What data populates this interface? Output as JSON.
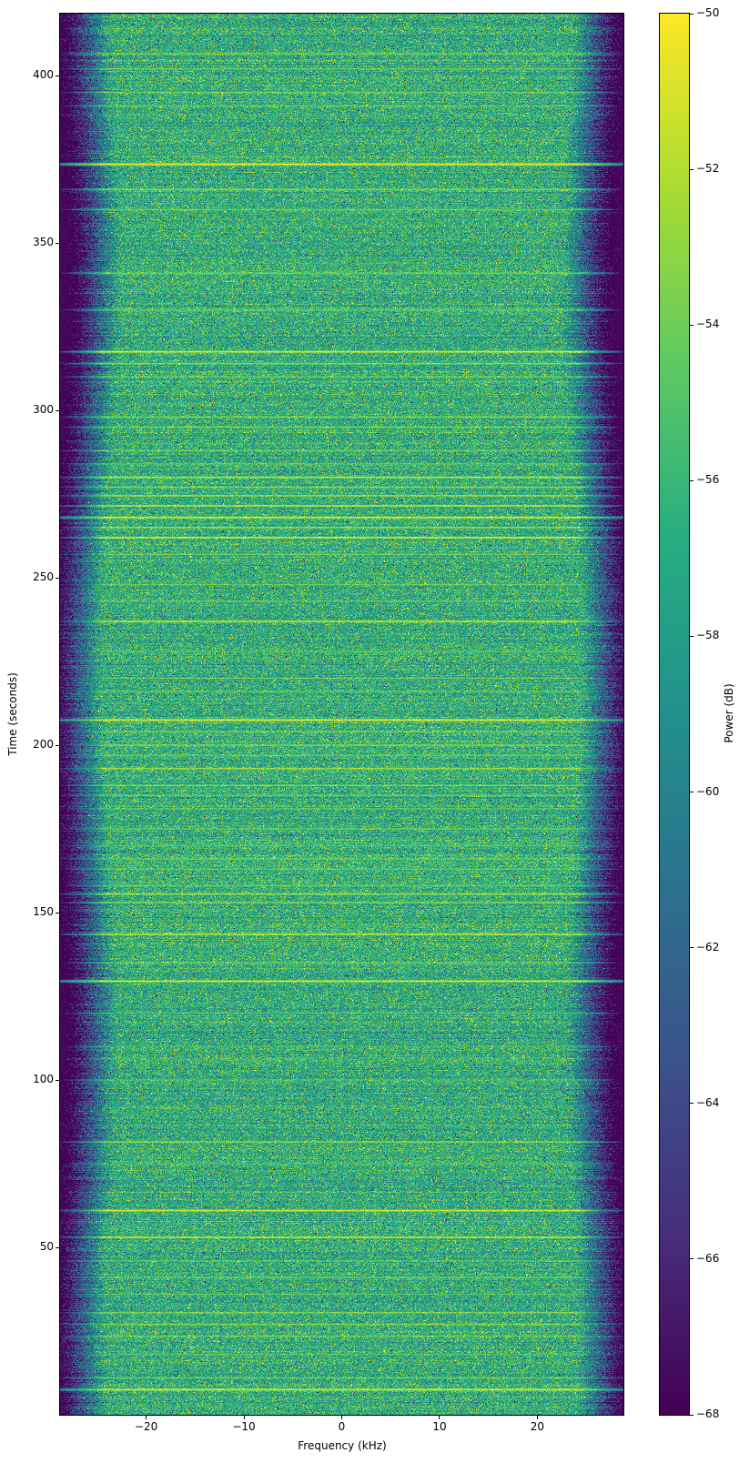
{
  "figure": {
    "title": "",
    "xlabel": "Frequency (kHz)",
    "ylabel": "Time (seconds)",
    "colorbar_label": "Power (dB)",
    "background_color": "#ffffff",
    "x_ticks": [
      {
        "v": -20,
        "label": "−20"
      },
      {
        "v": -10,
        "label": "−10"
      },
      {
        "v": 0,
        "label": "0"
      },
      {
        "v": 10,
        "label": "10"
      },
      {
        "v": 20,
        "label": "20"
      }
    ],
    "y_ticks": [
      {
        "v": 50,
        "label": "50"
      },
      {
        "v": 100,
        "label": "100"
      },
      {
        "v": 150,
        "label": "150"
      },
      {
        "v": 200,
        "label": "200"
      },
      {
        "v": 250,
        "label": "250"
      },
      {
        "v": 300,
        "label": "300"
      },
      {
        "v": 350,
        "label": "350"
      },
      {
        "v": 400,
        "label": "400"
      }
    ],
    "colorbar_ticks": [
      {
        "v": -50,
        "label": "−50"
      },
      {
        "v": -52,
        "label": "−52"
      },
      {
        "v": -54,
        "label": "−54"
      },
      {
        "v": -56,
        "label": "−56"
      },
      {
        "v": -58,
        "label": "−58"
      },
      {
        "v": -60,
        "label": "−60"
      },
      {
        "v": -62,
        "label": "−62"
      },
      {
        "v": -64,
        "label": "−64"
      },
      {
        "v": -66,
        "label": "−66"
      },
      {
        "v": -68,
        "label": "−68"
      }
    ]
  },
  "colors": {
    "axis": "#000000",
    "text": "#000000",
    "viridis_stops": [
      "#440154",
      "#472d7b",
      "#3b528b",
      "#2c718e",
      "#21918c",
      "#27ad81",
      "#5ec962",
      "#aadc32",
      "#fde725"
    ]
  },
  "chart_data": {
    "type": "heatmap",
    "subtype": "spectrogram",
    "title": "",
    "xlabel": "Frequency (kHz)",
    "ylabel": "Time (seconds)",
    "colorbar_label": "Power (dB)",
    "colormap": "viridis",
    "grid": false,
    "legend": false,
    "xlim": [
      -28.8,
      28.8
    ],
    "ylim": [
      0,
      418.5
    ],
    "clim": [
      -68,
      -50
    ],
    "x_tick_values": [
      -20,
      -10,
      0,
      10,
      20
    ],
    "y_tick_values": [
      50,
      100,
      150,
      200,
      250,
      300,
      350,
      400
    ],
    "colorbar_tick_values": [
      -50,
      -52,
      -54,
      -56,
      -58,
      -60,
      -62,
      -64,
      -66,
      -68
    ],
    "description": "Wideband noise spectrogram: a flat noise band about 47 kHz wide centered at 0 kHz (mean power ≈ −57 dB) above a −68 dB floor; band edges roll off noisily near ±24 kHz; numerous brief broadband interference bursts appear as thin horizontal yellow lines, a few extending across the full displayed span.",
    "noise_model": {
      "floor_db": -68,
      "band_mean_db": -56.8,
      "band_std_db": 2.1,
      "band_half_width_khz": 23.4,
      "edge_wiggle_khz": 1.3,
      "edge_rolloff_db_per_khz": 2.7,
      "row_bias_std_db": 0.6,
      "salt_prob": 0.025,
      "pepper_prob": 0.02,
      "margin_speckle_prob": 0.0015
    },
    "interference_lines": [
      {
        "t": 406.5,
        "s": 0.55
      },
      {
        "t": 402,
        "s": 0.5
      },
      {
        "t": 395,
        "s": 0.5
      },
      {
        "t": 391,
        "s": 0.45
      },
      {
        "t": 373.5,
        "s": 1.0,
        "full": true
      },
      {
        "t": 366,
        "s": 0.6
      },
      {
        "t": 360,
        "s": 0.5
      },
      {
        "t": 341,
        "s": 0.55
      },
      {
        "t": 330,
        "s": 0.5
      },
      {
        "t": 317.5,
        "s": 0.9
      },
      {
        "t": 314,
        "s": 0.6
      },
      {
        "t": 310,
        "s": 0.5
      },
      {
        "t": 298,
        "s": 0.6
      },
      {
        "t": 295,
        "s": 0.5
      },
      {
        "t": 288,
        "s": 0.5
      },
      {
        "t": 284,
        "s": 0.45
      },
      {
        "t": 280,
        "s": 0.8
      },
      {
        "t": 277,
        "s": 0.6
      },
      {
        "t": 274.5,
        "s": 0.7
      },
      {
        "t": 271.5,
        "s": 0.8
      },
      {
        "t": 268,
        "s": 0.9,
        "full": true
      },
      {
        "t": 265,
        "s": 0.7
      },
      {
        "t": 262,
        "s": 0.9
      },
      {
        "t": 257,
        "s": 0.5
      },
      {
        "t": 248,
        "s": 0.5
      },
      {
        "t": 243,
        "s": 0.45
      },
      {
        "t": 237,
        "s": 0.8
      },
      {
        "t": 228,
        "s": 0.4
      },
      {
        "t": 220,
        "s": 0.5
      },
      {
        "t": 216,
        "s": 0.45
      },
      {
        "t": 207.5,
        "s": 0.95,
        "full": true
      },
      {
        "t": 204,
        "s": 0.5
      },
      {
        "t": 200,
        "s": 0.6
      },
      {
        "t": 197,
        "s": 0.5
      },
      {
        "t": 193,
        "s": 0.7
      },
      {
        "t": 188,
        "s": 0.6
      },
      {
        "t": 185,
        "s": 0.5
      },
      {
        "t": 181,
        "s": 0.45
      },
      {
        "t": 175,
        "s": 0.5
      },
      {
        "t": 170,
        "s": 0.45
      },
      {
        "t": 166,
        "s": 0.5
      },
      {
        "t": 163,
        "s": 0.5
      },
      {
        "t": 158,
        "s": 0.5
      },
      {
        "t": 155.5,
        "s": 0.7
      },
      {
        "t": 153,
        "s": 0.6
      },
      {
        "t": 143.5,
        "s": 0.8
      },
      {
        "t": 135,
        "s": 0.4
      },
      {
        "t": 129.5,
        "s": 0.9,
        "full": true
      },
      {
        "t": 120,
        "s": 0.35
      },
      {
        "t": 110,
        "s": 0.3
      },
      {
        "t": 100,
        "s": 0.35
      },
      {
        "t": 81.5,
        "s": 0.6
      },
      {
        "t": 75,
        "s": 0.35
      },
      {
        "t": 61,
        "s": 0.85
      },
      {
        "t": 53,
        "s": 0.8
      },
      {
        "t": 46,
        "s": 0.4
      },
      {
        "t": 41,
        "s": 0.5
      },
      {
        "t": 36,
        "s": 0.4
      },
      {
        "t": 30.5,
        "s": 0.6
      },
      {
        "t": 27,
        "s": 0.6
      },
      {
        "t": 23.5,
        "s": 0.5
      },
      {
        "t": 18,
        "s": 0.4
      },
      {
        "t": 11,
        "s": 0.5
      },
      {
        "t": 7.5,
        "s": 0.9,
        "full": true
      }
    ]
  }
}
